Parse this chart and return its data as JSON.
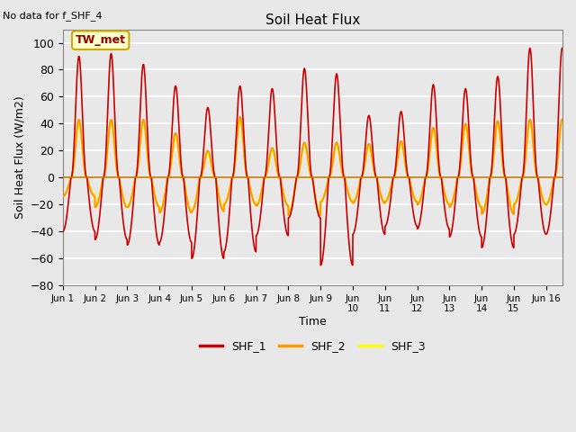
{
  "title": "Soil Heat Flux",
  "subtitle": "No data for f_SHF_4",
  "ylabel": "Soil Heat Flux (W/m2)",
  "xlabel": "Time",
  "ylim": [
    -80,
    110
  ],
  "yticks": [
    -80,
    -60,
    -40,
    -20,
    0,
    20,
    40,
    60,
    80,
    100
  ],
  "bg_color": "#e8e8e8",
  "plot_bg": "#e8e8e8",
  "grid_color": "#ffffff",
  "annotation_label": "TW_met",
  "annotation_bg": "#ffffcc",
  "annotation_border": "#ccaa00",
  "line_colors": {
    "SHF_1": "#cc0000",
    "SHF_2": "#ff9900",
    "SHF_3": "#ffff00"
  },
  "n_days": 15.5,
  "points_per_day": 240
}
